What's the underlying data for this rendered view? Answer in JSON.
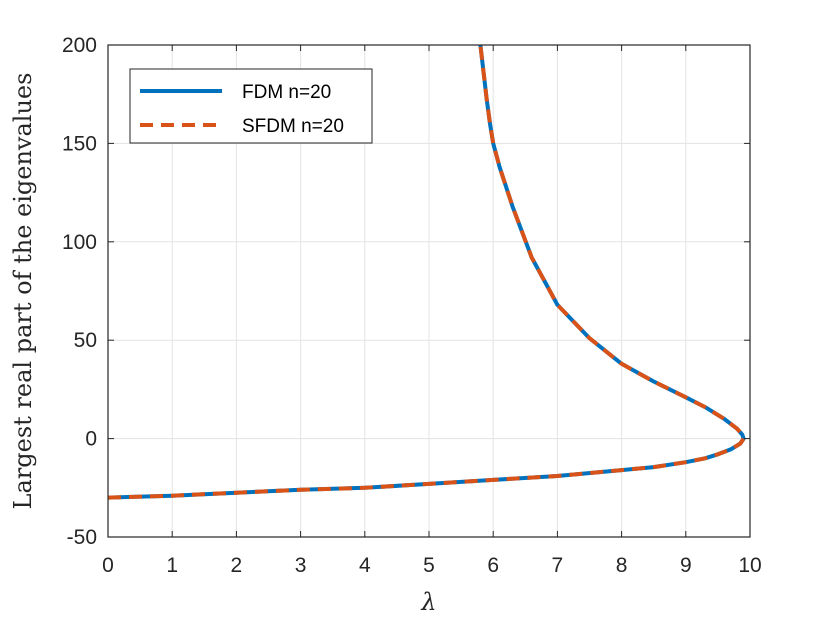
{
  "chart_data": {
    "type": "line",
    "xlabel": "λ",
    "ylabel": "Largest real part of the eigenvalues",
    "xlim": [
      0,
      10
    ],
    "ylim": [
      -50,
      200
    ],
    "xticks": [
      0,
      1,
      2,
      3,
      4,
      5,
      6,
      7,
      8,
      9,
      10
    ],
    "yticks": [
      -50,
      0,
      50,
      100,
      150,
      200
    ],
    "xtick_labels": [
      "0",
      "1",
      "2",
      "3",
      "4",
      "5",
      "6",
      "7",
      "8",
      "9",
      "10"
    ],
    "ytick_labels": [
      "-50",
      "0",
      "50",
      "100",
      "150",
      "200"
    ],
    "grid": true,
    "legend_position": "top-left",
    "series": [
      {
        "name": "FDM n=20",
        "style": "solid",
        "color": "#0072bd",
        "x": [
          0,
          1,
          2,
          3,
          4,
          5,
          6,
          7,
          8,
          8.5,
          9,
          9.3,
          9.5,
          9.7,
          9.85,
          9.9,
          9.88,
          9.8,
          9.6,
          9.3,
          9,
          8.5,
          8,
          7.5,
          7,
          6.6,
          6.3,
          6.1,
          6.0,
          5.95,
          5.9,
          5.85,
          5.8
        ],
        "y": [
          -30,
          -29,
          -27.5,
          -26,
          -25,
          -23,
          -21,
          -19,
          -16,
          -14.5,
          -12,
          -10,
          -8,
          -5.5,
          -2.5,
          0,
          2,
          5,
          10,
          16,
          21,
          29,
          38,
          51,
          68,
          92,
          118,
          138,
          150,
          160,
          172,
          186,
          200
        ]
      },
      {
        "name": "SFDM n=20",
        "style": "dashed",
        "color": "#d95319",
        "x": [
          0,
          1,
          2,
          3,
          4,
          5,
          6,
          7,
          8,
          8.5,
          9,
          9.3,
          9.5,
          9.7,
          9.85,
          9.9,
          9.88,
          9.8,
          9.6,
          9.3,
          9,
          8.5,
          8,
          7.5,
          7,
          6.6,
          6.3,
          6.1,
          6.0,
          5.95,
          5.9,
          5.85,
          5.8
        ],
        "y": [
          -30,
          -29,
          -27.5,
          -26,
          -25,
          -23,
          -21,
          -19,
          -16,
          -14.5,
          -12,
          -10,
          -8,
          -5.5,
          -2.5,
          0,
          2,
          5,
          10,
          16,
          21,
          29,
          38,
          51,
          68,
          92,
          118,
          138,
          150,
          160,
          172,
          186,
          200
        ]
      }
    ]
  }
}
